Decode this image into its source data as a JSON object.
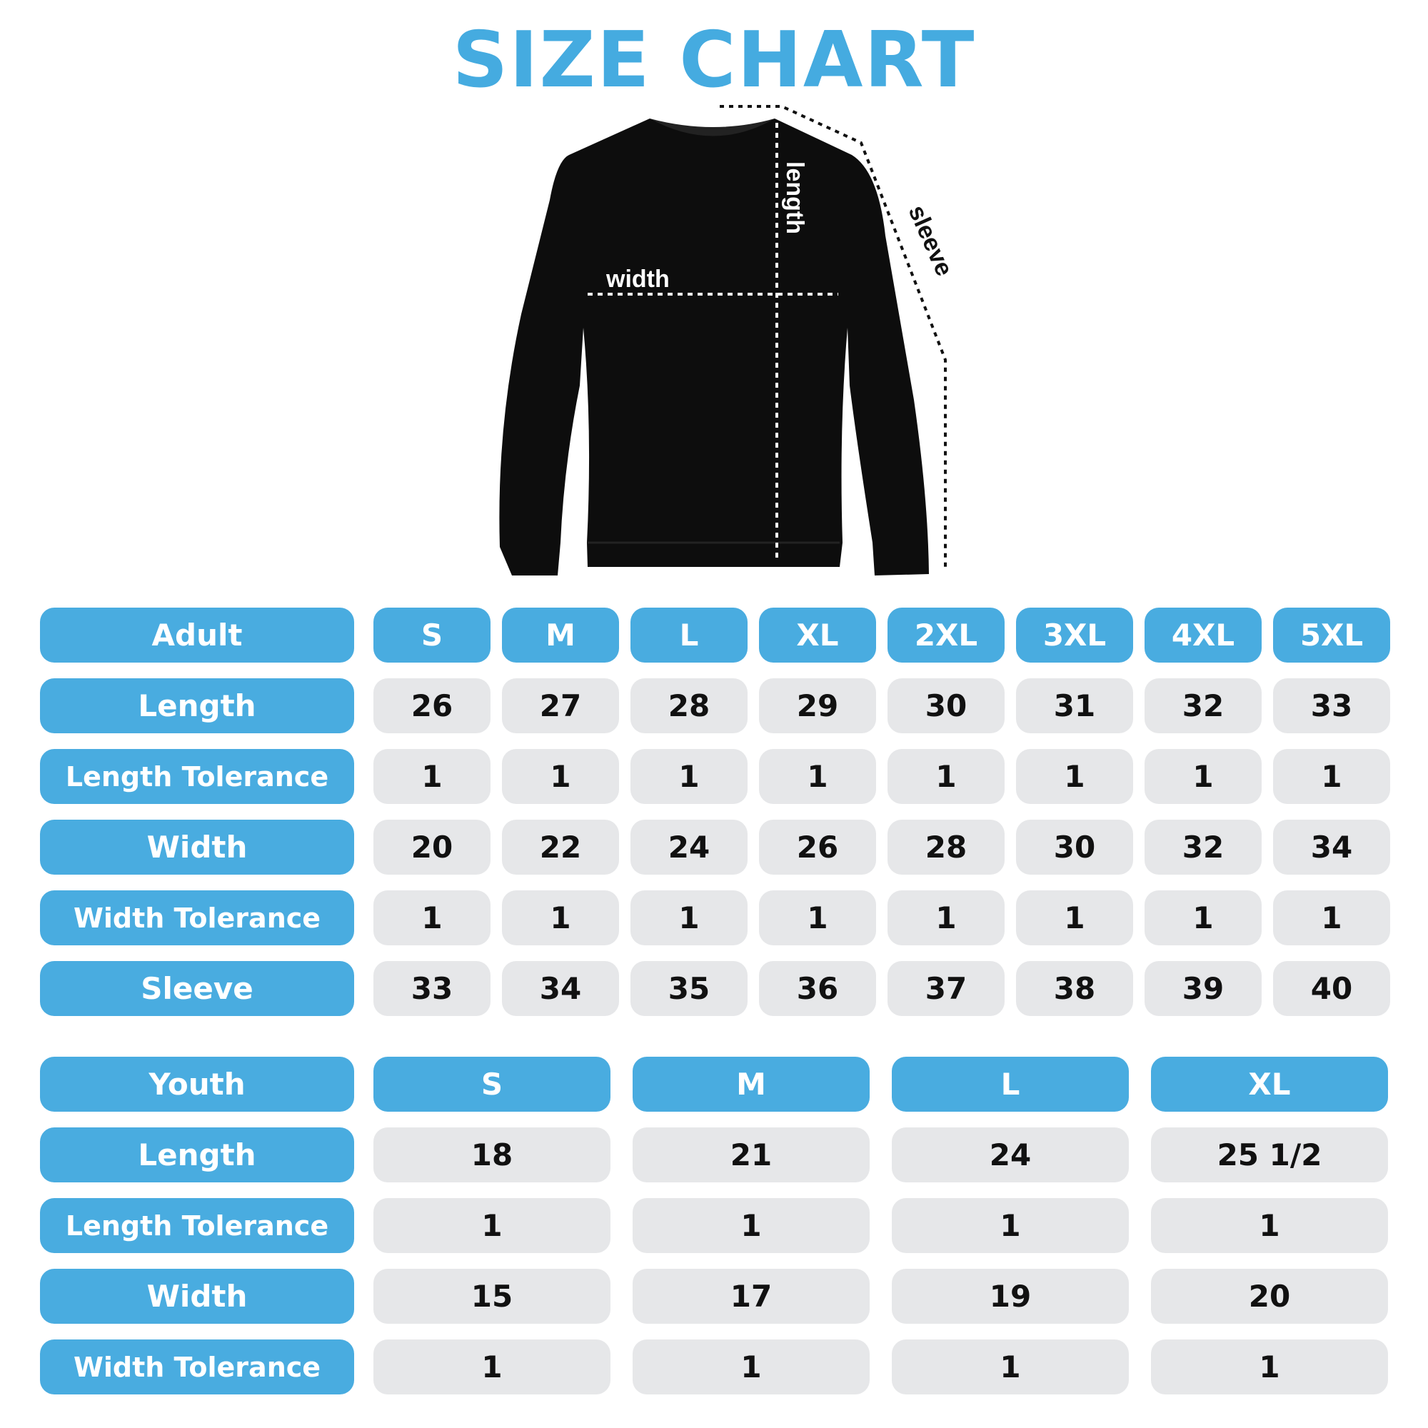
{
  "title": "SIZE CHART",
  "diagram": {
    "garment": "sweatshirt",
    "labels": {
      "width": "width",
      "length": "length",
      "sleeve": "sleeve"
    }
  },
  "colors": {
    "accent": "#49ACE0",
    "cell": "#E6E7E9",
    "text": "#111111"
  },
  "adult": {
    "header": "Adult",
    "sizes": [
      "S",
      "M",
      "L",
      "XL",
      "2XL",
      "3XL",
      "4XL",
      "5XL"
    ],
    "rows": [
      {
        "label": "Length",
        "values": [
          "26",
          "27",
          "28",
          "29",
          "30",
          "31",
          "32",
          "33"
        ]
      },
      {
        "label": "Length Tolerance",
        "values": [
          "1",
          "1",
          "1",
          "1",
          "1",
          "1",
          "1",
          "1"
        ]
      },
      {
        "label": "Width",
        "values": [
          "20",
          "22",
          "24",
          "26",
          "28",
          "30",
          "32",
          "34"
        ]
      },
      {
        "label": "Width Tolerance",
        "values": [
          "1",
          "1",
          "1",
          "1",
          "1",
          "1",
          "1",
          "1"
        ]
      },
      {
        "label": "Sleeve",
        "values": [
          "33",
          "34",
          "35",
          "36",
          "37",
          "38",
          "39",
          "40"
        ]
      }
    ]
  },
  "youth": {
    "header": "Youth",
    "sizes": [
      "S",
      "M",
      "L",
      "XL"
    ],
    "rows": [
      {
        "label": "Length",
        "values": [
          "18",
          "21",
          "24",
          "25 1/2"
        ]
      },
      {
        "label": "Length Tolerance",
        "values": [
          "1",
          "1",
          "1",
          "1"
        ]
      },
      {
        "label": "Width",
        "values": [
          "15",
          "17",
          "19",
          "20"
        ]
      },
      {
        "label": "Width Tolerance",
        "values": [
          "1",
          "1",
          "1",
          "1"
        ]
      }
    ]
  }
}
